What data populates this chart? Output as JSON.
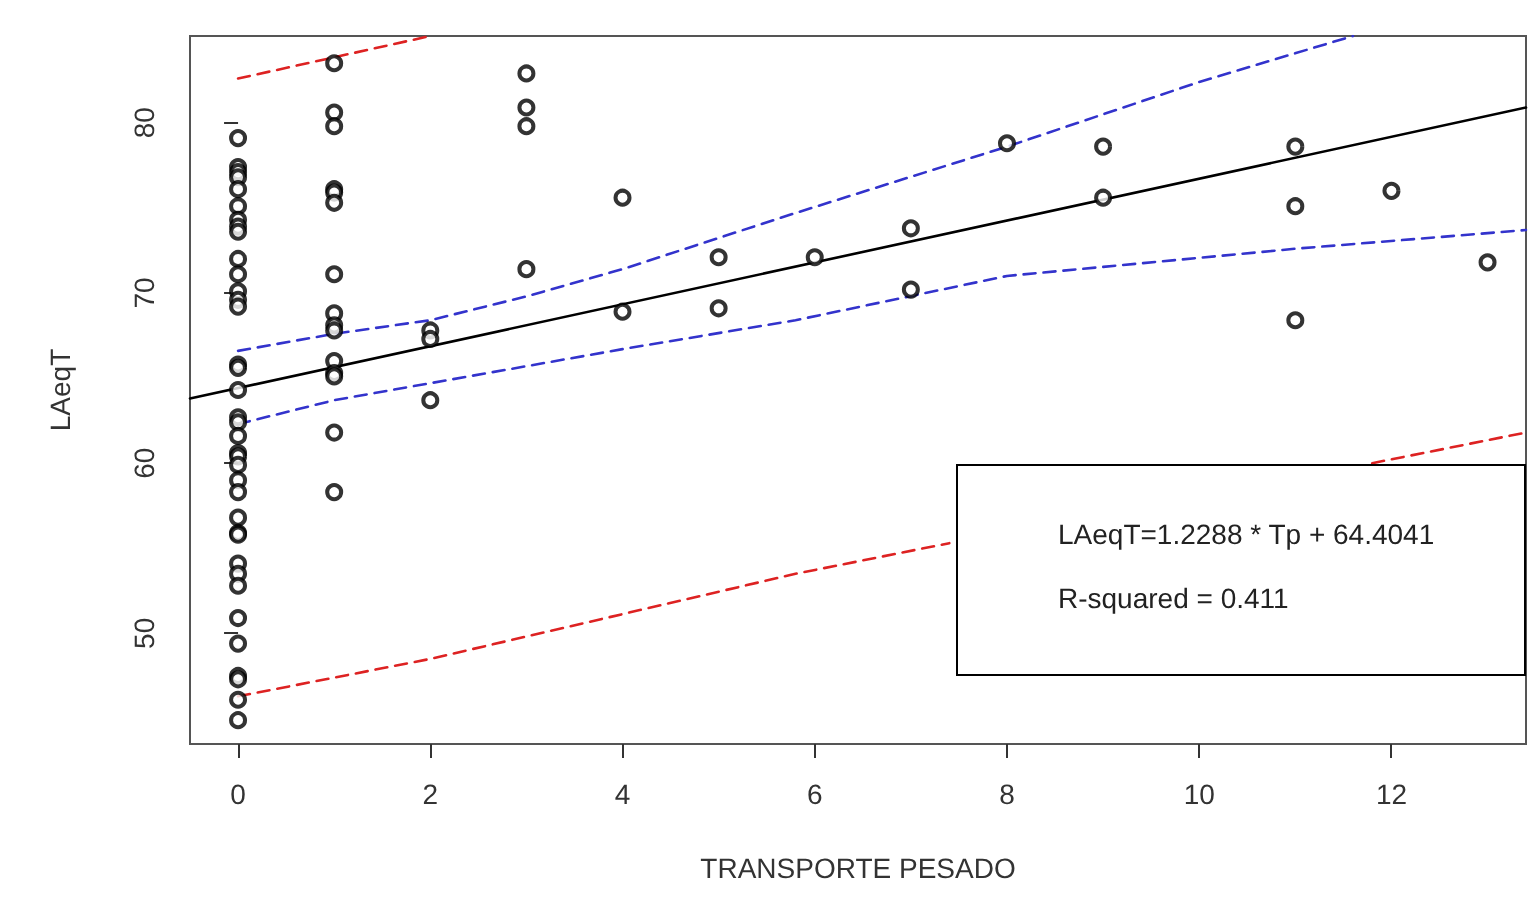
{
  "chart_data": {
    "type": "scatter",
    "xlabel": "TRANSPORTE PESADO",
    "ylabel": "LAeqT",
    "annotations": [
      "LAeqT=1.2288 * Tp + 64.4041",
      "R-squared = 0.411"
    ],
    "xlim": [
      -0.5,
      13.4
    ],
    "xticks": [
      0,
      2,
      4,
      6,
      8,
      10,
      12
    ],
    "ylim": [
      43.5,
      85.1
    ],
    "yticks": [
      50,
      60,
      70,
      80
    ],
    "grid": false,
    "series": [
      {
        "color": "#000000",
        "marker": "circle",
        "x": [
          0,
          0,
          0,
          0,
          0,
          0,
          0,
          0,
          0,
          0,
          0,
          0,
          0,
          0,
          0,
          0,
          0,
          0,
          0,
          0,
          0,
          0,
          0,
          0,
          0,
          0,
          0,
          0,
          0,
          0,
          0,
          0,
          0,
          0,
          0,
          0,
          0,
          1,
          1,
          1,
          1,
          1,
          1,
          1,
          1,
          1,
          1,
          1,
          1,
          1,
          1,
          1,
          2,
          2,
          2,
          3,
          3,
          3,
          3,
          4,
          4,
          5,
          5,
          6,
          7,
          7,
          8,
          9,
          9,
          11,
          11,
          11,
          12,
          13
        ],
        "values": [
          79.1,
          77.4,
          77.1,
          76.8,
          76.1,
          75.1,
          74.3,
          73.9,
          73.6,
          72.0,
          71.1,
          70.1,
          69.6,
          69.2,
          65.8,
          65.6,
          64.3,
          62.7,
          62.4,
          61.6,
          60.6,
          60.4,
          59.9,
          59.0,
          58.3,
          56.8,
          55.9,
          55.8,
          54.1,
          53.5,
          52.8,
          50.9,
          49.4,
          47.5,
          47.3,
          46.1,
          44.9,
          83.5,
          80.6,
          79.8,
          76.1,
          75.9,
          75.3,
          71.1,
          68.8,
          68.1,
          67.8,
          66.0,
          65.3,
          65.1,
          61.8,
          58.3,
          67.8,
          67.3,
          63.7,
          82.9,
          80.9,
          79.8,
          71.4,
          75.6,
          68.9,
          72.1,
          69.1,
          72.1,
          73.8,
          70.2,
          78.8,
          78.6,
          75.6,
          78.6,
          75.1,
          68.4,
          76.0,
          71.8
        ]
      },
      {
        "type": "line",
        "color": "#000000",
        "line_style": "solid",
        "marker": "none",
        "x": [
          -0.5,
          13.4
        ],
        "values": [
          63.8,
          80.9
        ]
      },
      {
        "type": "line",
        "color": "#3333cc",
        "line_style": "dashed",
        "marker": "none",
        "x": [
          0,
          1,
          2,
          3,
          4,
          5.8,
          8,
          10,
          11.6
        ],
        "values": [
          66.6,
          67.6,
          68.4,
          69.8,
          71.4,
          74.7,
          78.6,
          82.4,
          85.1
        ]
      },
      {
        "type": "line",
        "color": "#3333cc",
        "line_style": "dashed",
        "marker": "none",
        "x": [
          0,
          1,
          2,
          4,
          5.8,
          8,
          11,
          13.4
        ],
        "values": [
          62.3,
          63.7,
          64.7,
          66.7,
          68.4,
          71.0,
          72.6,
          73.7
        ]
      },
      {
        "type": "line",
        "color": "#dd2222",
        "line_style": "dashed",
        "marker": "none",
        "x": [
          0,
          2
        ],
        "values": [
          82.6,
          85.1
        ]
      },
      {
        "type": "line",
        "color": "#dd2222",
        "line_style": "dashed",
        "marker": "none",
        "x": [
          0,
          2,
          5.8,
          7.4,
          9,
          11.8,
          13.4
        ],
        "values": [
          46.3,
          48.5,
          53.5,
          55.3,
          null,
          60.0,
          61.8
        ]
      }
    ]
  }
}
